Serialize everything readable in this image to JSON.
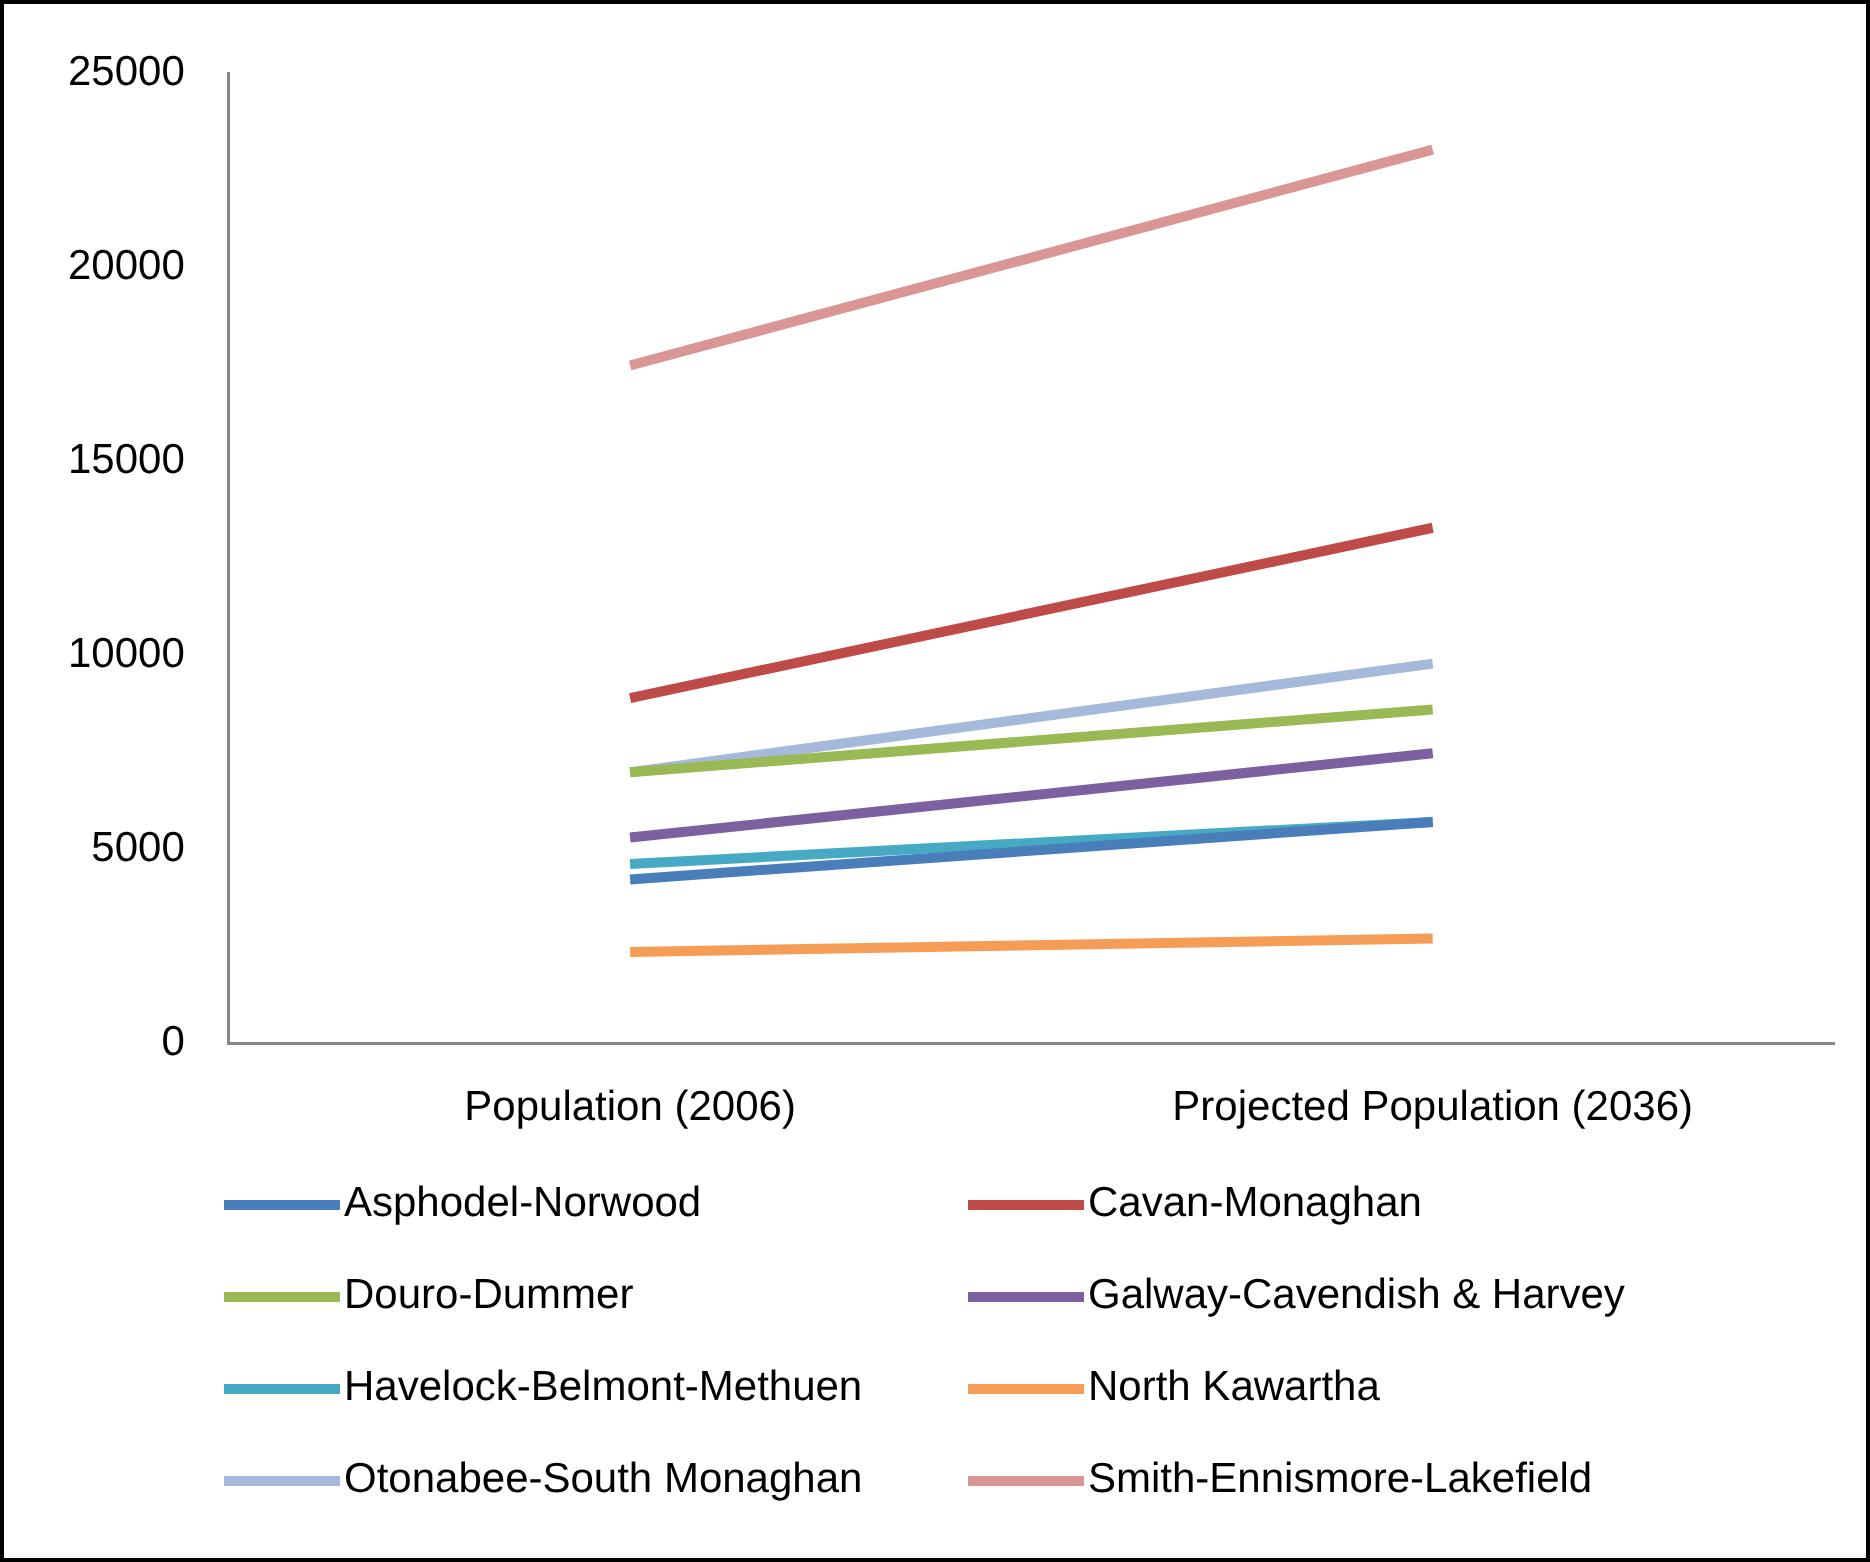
{
  "chart_data": {
    "type": "line",
    "categories": [
      "Population (2006)",
      "Projected Population (2036)"
    ],
    "series": [
      {
        "name": "Asphodel-Norwood",
        "color": "#4a7ebb",
        "values": [
          4230,
          5710
        ]
      },
      {
        "name": "Cavan-Monaghan",
        "color": "#be4b48",
        "values": [
          8900,
          13290
        ]
      },
      {
        "name": "Douro-Dummer",
        "color": "#98b954",
        "values": [
          6990,
          8610
        ]
      },
      {
        "name": "Galway-Cavendish & Harvey",
        "color": "#7d60a0",
        "values": [
          5310,
          7480
        ]
      },
      {
        "name": "Havelock-Belmont-Methuen",
        "color": "#46aac5",
        "values": [
          4630,
          5710
        ]
      },
      {
        "name": "North Kawartha",
        "color": "#f59d56",
        "values": [
          2360,
          2710
        ]
      },
      {
        "name": "Otonabee-South Monaghan",
        "color": "#a5b9da",
        "values": [
          6990,
          9790
        ]
      },
      {
        "name": "Smith-Ennismore-Lakefield",
        "color": "#d99694",
        "values": [
          17470,
          23030
        ]
      }
    ],
    "ylim": [
      0,
      25000
    ],
    "yticks": [
      0,
      5000,
      10000,
      15000,
      20000,
      25000
    ],
    "grid": false,
    "legend": "bottom",
    "marker": "none",
    "line_style": "solid"
  }
}
